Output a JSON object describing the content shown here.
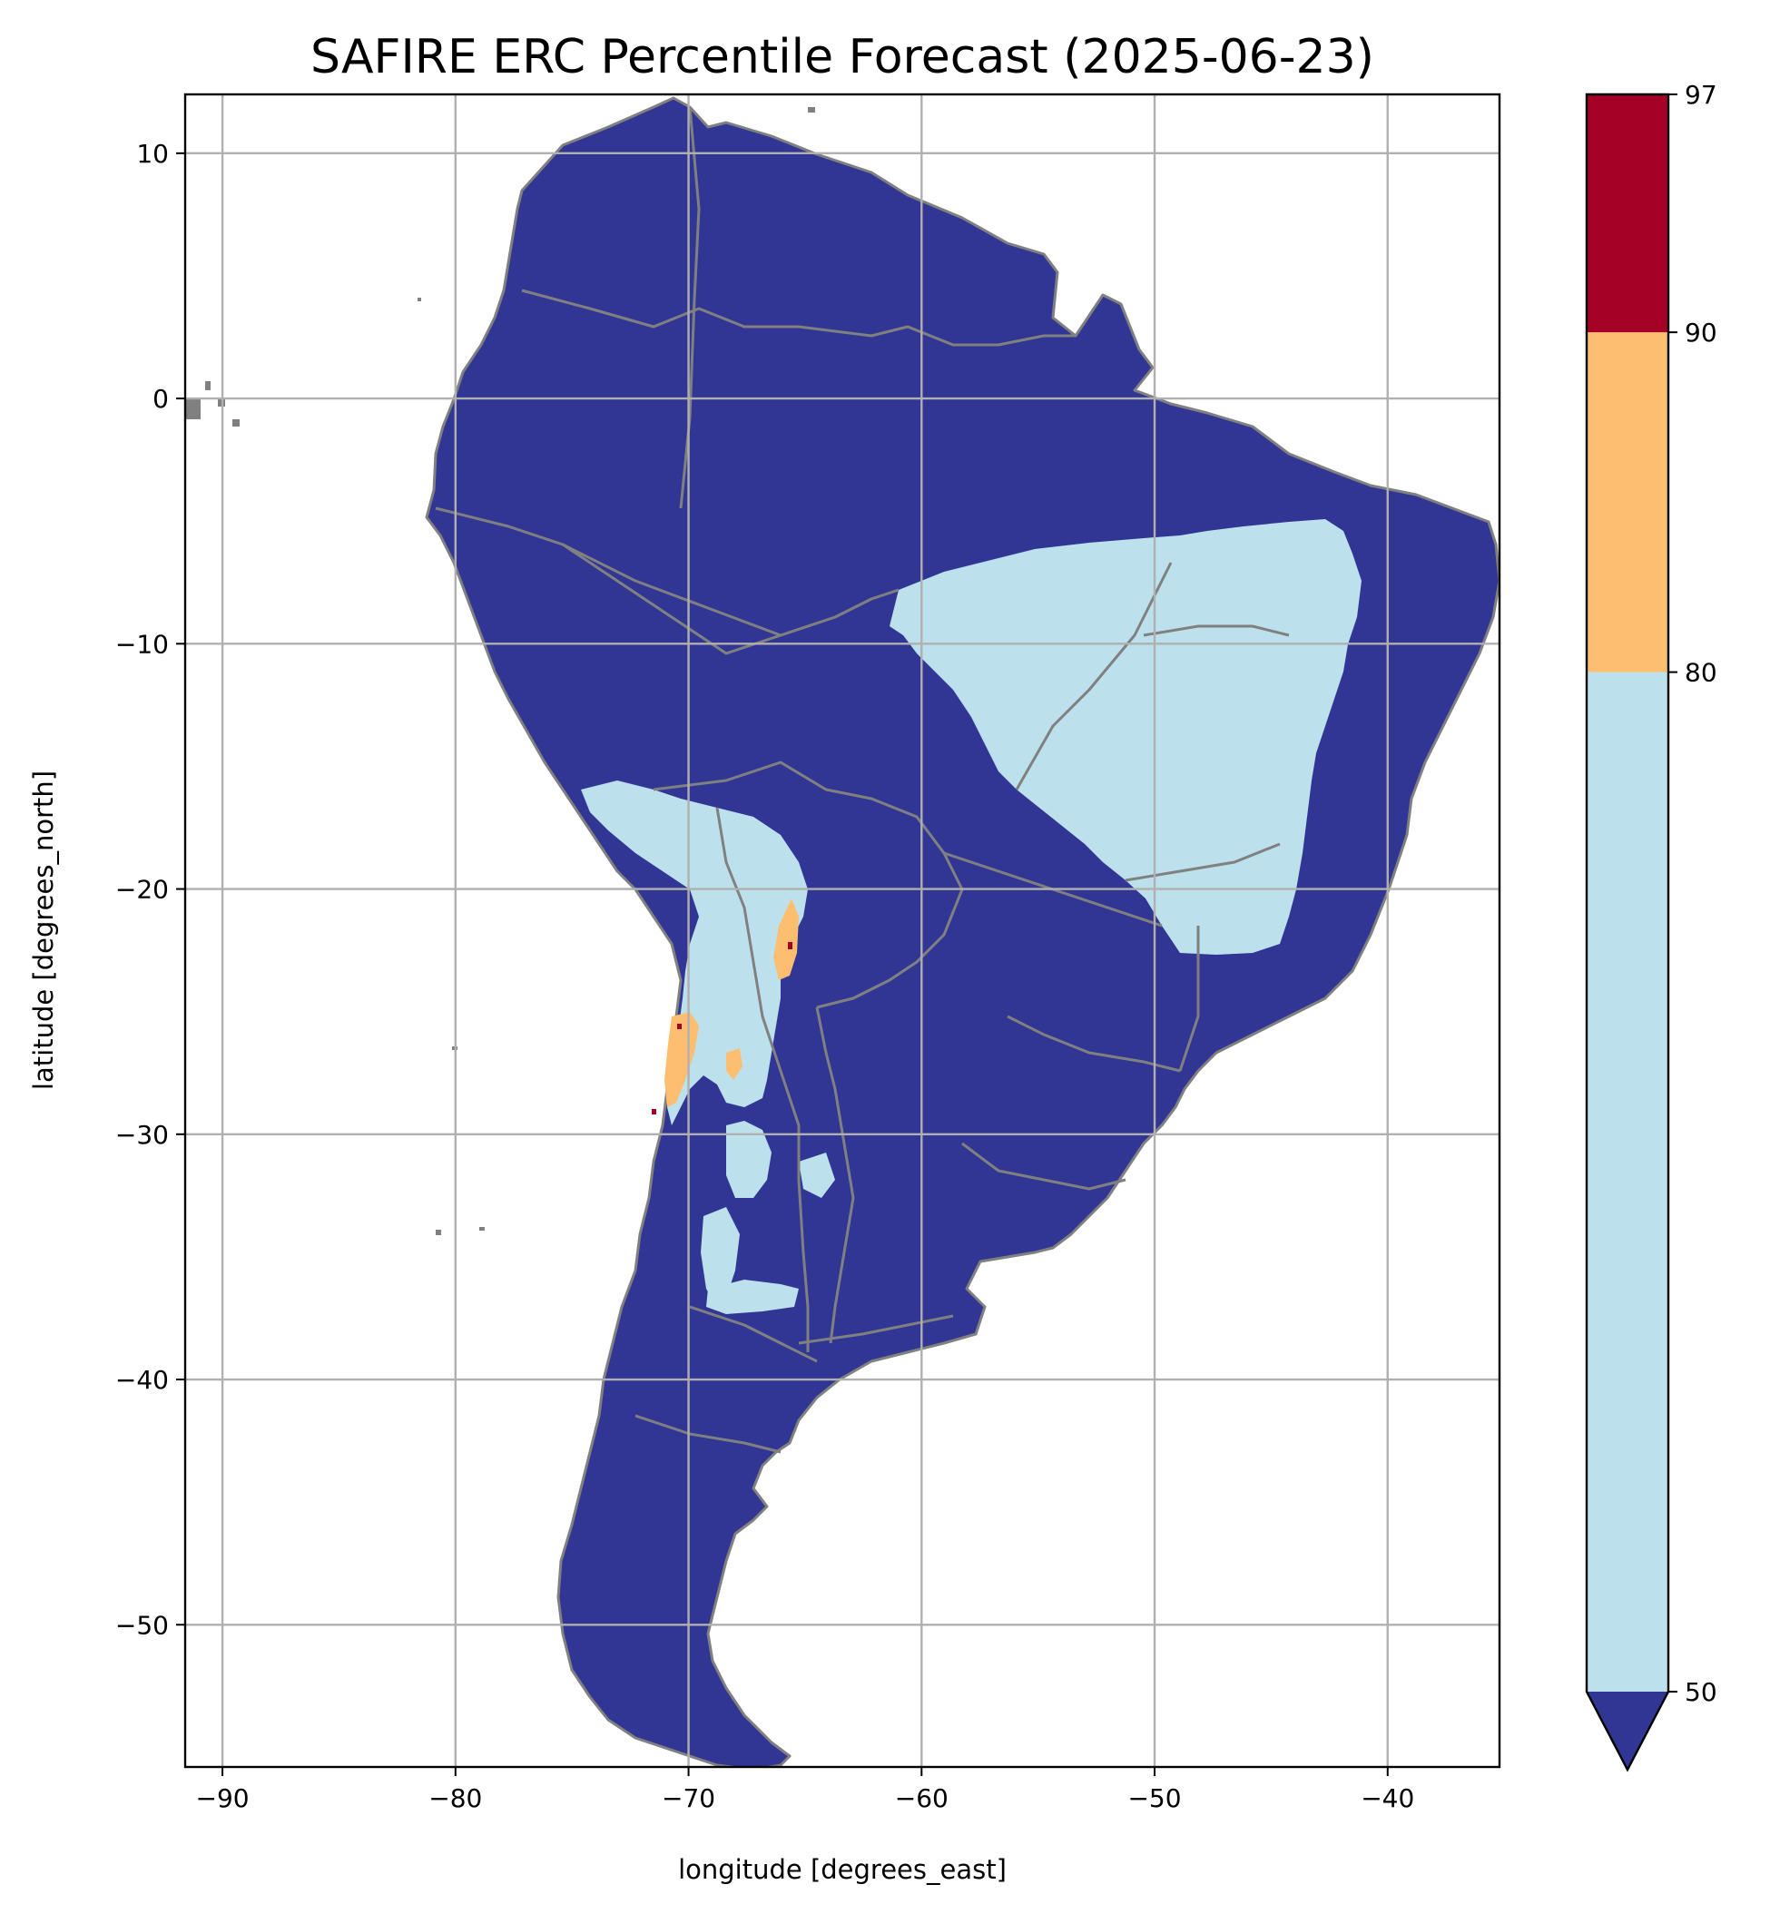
{
  "chart_data": {
    "type": "heatmap",
    "title": "SAFIRE ERC Percentile Forecast (2025-06-23)",
    "xlabel": "longitude [degrees_east]",
    "ylabel": "latitude [degrees_north]",
    "xlim": [
      -91.6,
      -35.2
    ],
    "ylim": [
      -55.8,
      12.4
    ],
    "xticks": [
      -90,
      -80,
      -70,
      -60,
      -50,
      -40
    ],
    "yticks": [
      10,
      0,
      -10,
      -20,
      -30,
      -40,
      -50
    ],
    "xtick_labels": [
      "−90",
      "−80",
      "−70",
      "−60",
      "−50",
      "−40"
    ],
    "ytick_labels": [
      "10",
      "0",
      "−10",
      "−20",
      "−30",
      "−40",
      "−50"
    ],
    "grid": true,
    "colorbar": {
      "position": "right",
      "ticks": [
        50,
        80,
        90,
        97
      ],
      "tick_labels": [
        "50",
        "80",
        "90",
        "97"
      ],
      "extend": "min",
      "bins": [
        {
          "range": [
            50,
            80
          ],
          "color": "#bde1ec"
        },
        {
          "range": [
            80,
            90
          ],
          "color": "#fdbf6f"
        },
        {
          "range": [
            90,
            97
          ],
          "color": "#a50026"
        }
      ],
      "under_color": "#313695"
    },
    "colors": {
      "land_below_50": "#313695",
      "band_50_80": "#bde1ec",
      "band_80_90": "#fdbf6f",
      "band_90_97": "#a50026",
      "borders": "#808080",
      "grid": "#b0b0b0"
    }
  }
}
